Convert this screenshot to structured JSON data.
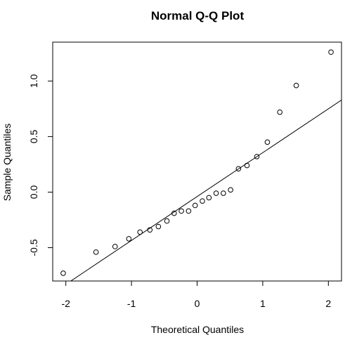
{
  "chart_data": {
    "type": "scatter",
    "title": "Normal Q-Q Plot",
    "xlabel": "Theoretical Quantiles",
    "ylabel": "Sample Quantiles",
    "xlim": [
      -2.2,
      2.2
    ],
    "ylim": [
      -0.8,
      1.35
    ],
    "x_ticks": [
      -2,
      -1,
      0,
      1,
      2
    ],
    "x_tick_labels": [
      "-2",
      "-1",
      "0",
      "1",
      "2"
    ],
    "y_ticks": [
      -0.5,
      0.0,
      0.5,
      1.0
    ],
    "y_tick_labels": [
      "-0.5",
      "0.0",
      "0.5",
      "1.0"
    ],
    "grid": false,
    "marker": "open-circle",
    "points": {
      "x": [
        -2.04,
        -1.54,
        -1.25,
        -1.04,
        -0.87,
        -0.72,
        -0.59,
        -0.46,
        -0.35,
        -0.24,
        -0.13,
        -0.03,
        0.08,
        0.18,
        0.29,
        0.4,
        0.51,
        0.63,
        0.76,
        0.91,
        1.07,
        1.26,
        1.51,
        2.04
      ],
      "y": [
        -0.73,
        -0.54,
        -0.49,
        -0.42,
        -0.36,
        -0.34,
        -0.31,
        -0.26,
        -0.19,
        -0.17,
        -0.17,
        -0.12,
        -0.08,
        -0.05,
        -0.01,
        -0.01,
        0.02,
        0.21,
        0.24,
        0.32,
        0.45,
        0.72,
        0.96,
        1.26
      ]
    },
    "reference_line": {
      "intercept": -0.04,
      "slope": 0.395
    }
  }
}
